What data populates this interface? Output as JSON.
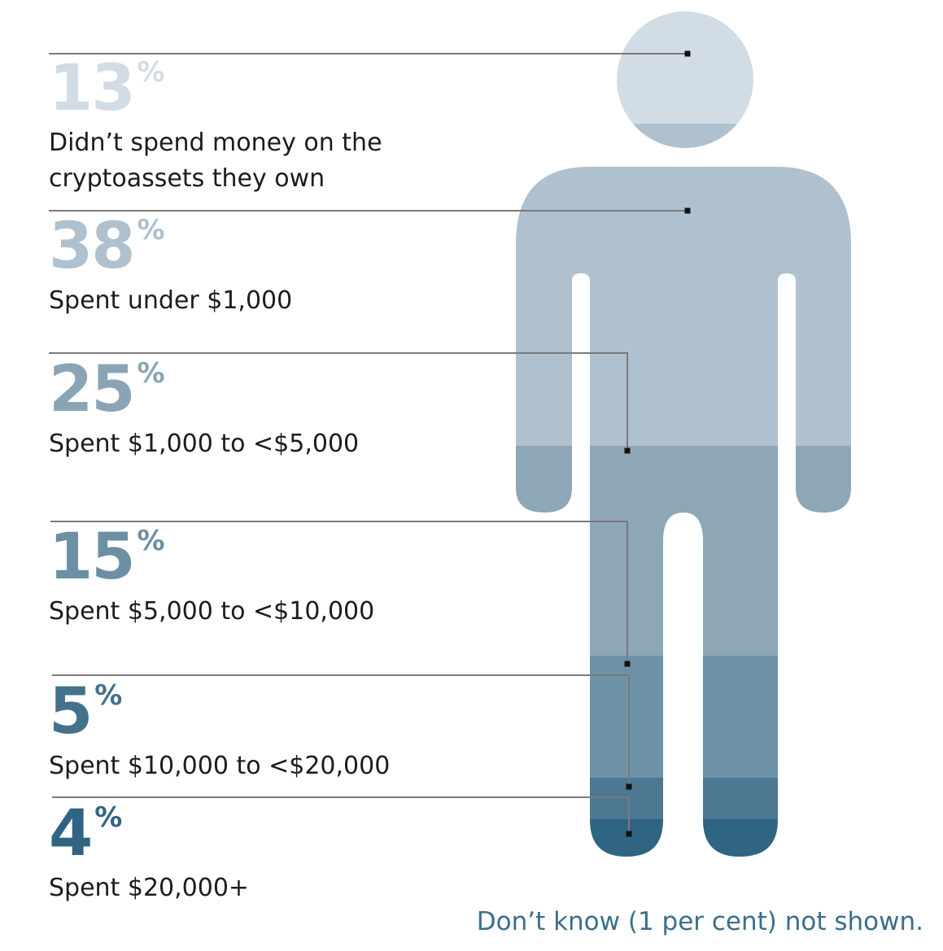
{
  "chart_data": {
    "type": "pictogram",
    "unit": "%",
    "series": [
      {
        "value": 13,
        "label_lines": [
          "Didn’t spend money on the",
          "cryptoassets they own"
        ],
        "color": "#d2dce4",
        "text_color": "#d2dce4"
      },
      {
        "value": 38,
        "label_lines": [
          "Spent under $1,000"
        ],
        "color": "#afc0ce",
        "text_color": "#afc0ce"
      },
      {
        "value": 25,
        "label_lines": [
          "Spent $1,000 to <$5,000"
        ],
        "color": "#8ea7b7",
        "text_color": "#8aa4b5"
      },
      {
        "value": 15,
        "label_lines": [
          "Spent $5,000 to <$10,000"
        ],
        "color": "#6d92a6",
        "text_color": "#6b8fa3"
      },
      {
        "value": 5,
        "label_lines": [
          "Spent $10,000 to <$20,000"
        ],
        "color": "#4c7891",
        "text_color": "#44718b"
      },
      {
        "value": 4,
        "label_lines": [
          "Spent $20,000+"
        ],
        "color": "#2f6582",
        "text_color": "#2f6582"
      }
    ],
    "footnote": "Don’t know (1 per cent) not shown."
  }
}
